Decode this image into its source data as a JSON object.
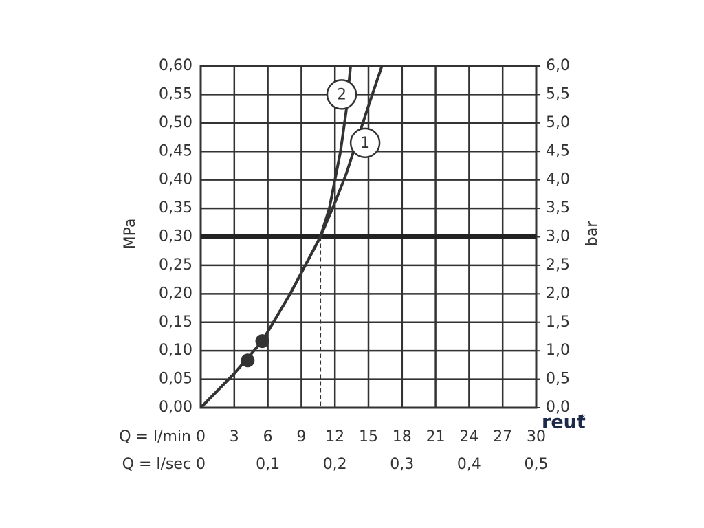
{
  "chart_data": {
    "type": "line",
    "y_label": "MPa",
    "y2_label": "bar",
    "x_label": "Q = l/min",
    "x2_label": "Q = l/sec",
    "xlim": [
      0,
      30
    ],
    "xticks": [
      0,
      3,
      6,
      9,
      12,
      15,
      18,
      21,
      24,
      27,
      30
    ],
    "x2lim": [
      0,
      0.5
    ],
    "x2ticks": [
      0,
      {
        "value": 0.1,
        "label": "0,1"
      },
      {
        "value": 0.2,
        "label": "0,2"
      },
      {
        "value": 0.3,
        "label": "0,3"
      },
      {
        "value": 0.4,
        "label": "0,4"
      },
      {
        "value": 0.5,
        "label": "0,5"
      }
    ],
    "ylim": [
      0,
      0.6
    ],
    "yticks": [
      {
        "value": 0,
        "label": "0,00"
      },
      {
        "value": 0.05,
        "label": "0,05"
      },
      {
        "value": 0.1,
        "label": "0,10"
      },
      {
        "value": 0.15,
        "label": "0,15"
      },
      {
        "value": 0.2,
        "label": "0,20"
      },
      {
        "value": 0.25,
        "label": "0,25"
      },
      {
        "value": 0.3,
        "label": "0,30"
      },
      {
        "value": 0.35,
        "label": "0,35"
      },
      {
        "value": 0.4,
        "label": "0,40"
      },
      {
        "value": 0.45,
        "label": "0,45"
      },
      {
        "value": 0.5,
        "label": "0,50"
      },
      {
        "value": 0.55,
        "label": "0,55"
      },
      {
        "value": 0.6,
        "label": "0,60"
      }
    ],
    "y2lim": [
      0,
      6
    ],
    "y2ticks": [
      {
        "value": 0,
        "label": "0,0"
      },
      {
        "value": 0.5,
        "label": "0,5"
      },
      {
        "value": 1,
        "label": "1,0"
      },
      {
        "value": 1.5,
        "label": "1,5"
      },
      {
        "value": 2,
        "label": "2,0"
      },
      {
        "value": 2.5,
        "label": "2,5"
      },
      {
        "value": 3,
        "label": "3,0"
      },
      {
        "value": 3.5,
        "label": "3,5"
      },
      {
        "value": 4,
        "label": "4,0"
      },
      {
        "value": 4.5,
        "label": "4,5"
      },
      {
        "value": 5,
        "label": "5,0"
      },
      {
        "value": 5.5,
        "label": "5,5"
      },
      {
        "value": 6,
        "label": "6,0"
      }
    ],
    "grid": true,
    "series": [
      {
        "name": "1",
        "color": "#333333",
        "x": [
          0,
          3,
          5.5,
          8,
          10.7,
          12,
          13,
          14,
          15,
          16.2
        ],
        "values": [
          0,
          0.06,
          0.117,
          0.2,
          0.3,
          0.36,
          0.41,
          0.47,
          0.53,
          0.6
        ],
        "label_at": {
          "x": 14.7,
          "y": 0.465
        }
      },
      {
        "name": "2",
        "color": "#333333",
        "x": [
          0,
          3,
          5.5,
          8,
          10.7,
          11.5,
          12,
          12.5,
          13,
          13.4
        ],
        "values": [
          0,
          0.06,
          0.117,
          0.2,
          0.3,
          0.35,
          0.4,
          0.45,
          0.52,
          0.6
        ],
        "label_at": {
          "x": 12.6,
          "y": 0.55
        }
      }
    ],
    "markers": {
      "x": [
        4.2,
        5.5
      ],
      "values": [
        0.083,
        0.117
      ]
    },
    "reference_y": 0.3,
    "reference_x": 10.7,
    "watermark": "reut",
    "watermark_sup": "sk"
  }
}
